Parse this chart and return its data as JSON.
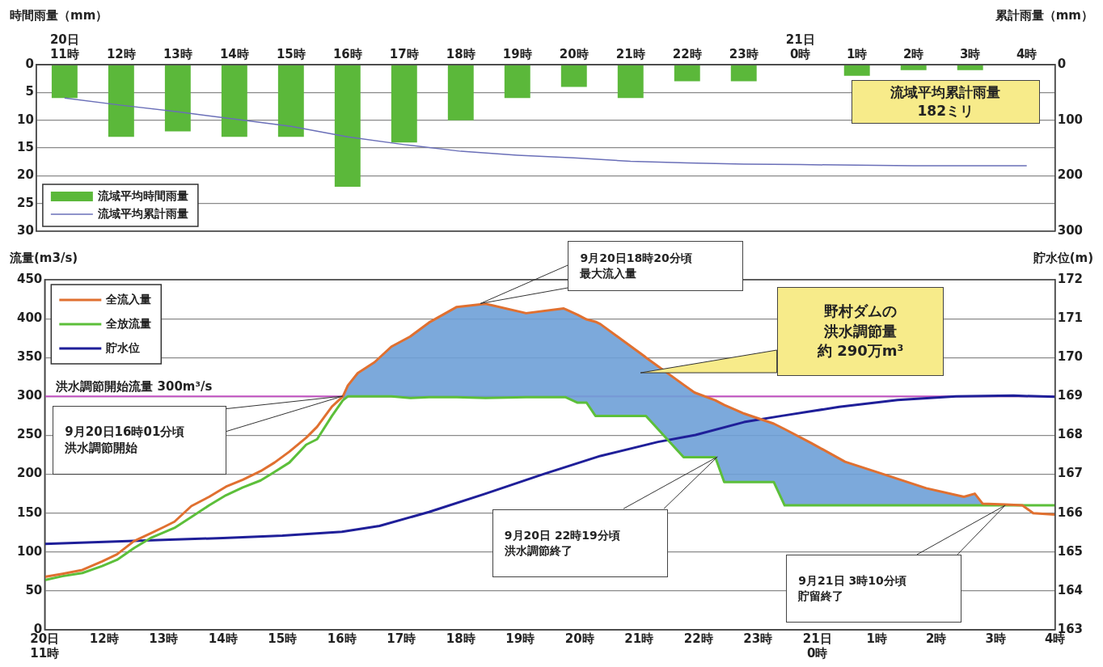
{
  "chart_data": [
    {
      "type": "bar",
      "ylabel": "時間雨量（mm）",
      "y2label": "累計雨量（mm）",
      "categories": [
        "20日\n11時",
        "12時",
        "13時",
        "14時",
        "15時",
        "16時",
        "17時",
        "18時",
        "19時",
        "20時",
        "21時",
        "22時",
        "23時",
        "21日\n0時",
        "1時",
        "2時",
        "3時",
        "4時"
      ],
      "series": [
        {
          "name": "流域平均時間雨量",
          "color": "#5bb83a",
          "values": [
            6,
            13,
            12,
            13,
            13,
            22,
            14,
            10,
            6,
            4,
            6,
            3,
            3,
            0,
            2,
            1,
            1,
            null
          ]
        },
        {
          "name": "流域平均累計雨量",
          "type": "line",
          "color": "#6a6fb8",
          "axis": "y2",
          "values": [
            60,
            73,
            85,
            98,
            111,
            130,
            144,
            156,
            163,
            168,
            174,
            177,
            179,
            180,
            181,
            182,
            182,
            182
          ]
        }
      ],
      "ylim": [
        30,
        0
      ],
      "yticks": [
        0,
        5,
        10,
        15,
        20,
        25,
        30
      ],
      "y2lim": [
        300,
        0
      ],
      "y2ticks": [
        0,
        100,
        200,
        300
      ],
      "grid": "y",
      "legend": "bottom left",
      "marker": "none",
      "annotations": [
        "流域平均累計雨量182ミリ"
      ]
    },
    {
      "type": "line",
      "ylabel": "流量(m3/s)",
      "y2label": "貯水位(m)",
      "x": [
        "--09-20T11:00",
        "--09-20T11:18",
        "--09-20T11:38",
        "--09-20T11:58",
        "--09-20T12:13",
        "--09-20T12:30",
        "--09-20T12:47",
        "--09-20T13:00",
        "--09-20T13:11",
        "--09-20T13:28",
        "--09-20T13:46",
        "--09-20T14:03",
        "--09-20T14:20",
        "--09-20T14:38",
        "--09-20T14:52",
        "--09-20T15:07",
        "--09-20T15:24",
        "--09-20T15:35",
        "--09-20T15:50",
        "--09-20T16:01",
        "--09-20T16:06",
        "--09-20T16:16",
        "--09-20T16:33",
        "--09-20T16:50",
        "--09-20T17:09",
        "--09-20T17:28",
        "--09-20T17:56",
        "--09-20T18:25",
        "--09-20T19:06",
        "--09-20T19:44",
        "--09-20T19:46",
        "--09-20T19:58",
        "--09-20T20:07",
        "--09-20T20:16",
        "--09-20T20:21",
        "--09-20T21:05",
        "--09-20T21:07",
        "--09-20T21:45",
        "--09-20T21:56",
        "--09-20T22:17",
        "--09-20T22:26",
        "--09-20T22:46",
        "--09-20T23:16",
        "--09-20T23:27",
        "--09-20T23:54",
        "--09-21T00:28",
        "--09-21T01:07",
        "--09-21T01:50",
        "--09-21T02:28",
        "--09-21T02:39",
        "--09-21T02:47",
        "--09-21T03:10",
        "--09-21T03:27",
        "--09-21T03:38",
        "--09-21T04:00"
      ],
      "series": [
        {
          "name": "全流入量",
          "color": "#e07030",
          "values": [
            68,
            72,
            77,
            88,
            97,
            114,
            124,
            132,
            139,
            159,
            171,
            184,
            193,
            204,
            215,
            229,
            247,
            261,
            287,
            300,
            314,
            330,
            344,
            364,
            377,
            395,
            415,
            419,
            407,
            413,
            412,
            405,
            399,
            396,
            393,
            352,
            350,
            315,
            305,
            295,
            289,
            278,
            265,
            258,
            240,
            216,
            200,
            182,
            171,
            175,
            162,
            161,
            160,
            150,
            148
          ],
          "lower": [
            null,
            null,
            null,
            null,
            null,
            null,
            null,
            null,
            null,
            null,
            null,
            null,
            null,
            null,
            null,
            null,
            null,
            null,
            null,
            295,
            300,
            300,
            300,
            300,
            298,
            299,
            299,
            298,
            299,
            299,
            299,
            292,
            292,
            275,
            275,
            275,
            275,
            222,
            222,
            222,
            190,
            190,
            190,
            160,
            160,
            160,
            160,
            160,
            160,
            160,
            160,
            160,
            null,
            null,
            null
          ],
          "upper": [
            null,
            null,
            null,
            null,
            null,
            null,
            null,
            null,
            null,
            null,
            null,
            null,
            null,
            null,
            null,
            null,
            null,
            null,
            null,
            300,
            314,
            330,
            344,
            364,
            377,
            395,
            415,
            419,
            407,
            413,
            412,
            405,
            399,
            396,
            393,
            352,
            350,
            315,
            305,
            295,
            289,
            278,
            265,
            258,
            240,
            216,
            200,
            182,
            171,
            175,
            162,
            161,
            null,
            null,
            null
          ]
        },
        {
          "name": "全放流量",
          "color": "#5cbf3a",
          "values": [
            64,
            69,
            73,
            82,
            90,
            105,
            118,
            125,
            131,
            145,
            160,
            173,
            183,
            192,
            203,
            215,
            238,
            245,
            275,
            295,
            300,
            300,
            300,
            300,
            298,
            299,
            299,
            298,
            299,
            299,
            299,
            292,
            292,
            275,
            275,
            275,
            275,
            222,
            222,
            222,
            190,
            190,
            190,
            160,
            160,
            160,
            160,
            160,
            160,
            160,
            160,
            160,
            160,
            160,
            160
          ]
        },
        {
          "name": "貯水位",
          "color": "#1f1f99",
          "axis": "y2",
          "x": [
            "--09-20T11:00",
            "--09-20T12:00",
            "--09-20T13:00",
            "--09-20T14:00",
            "--09-20T15:00",
            "--09-20T16:00",
            "--09-20T16:38",
            "--09-20T17:28",
            "--09-20T18:25",
            "--09-20T19:23",
            "--09-20T20:21",
            "--09-20T21:19",
            "--09-20T21:57",
            "--09-20T22:46",
            "--09-20T23:24",
            "--09-21T00:22",
            "--09-21T01:21",
            "--09-21T02:20",
            "--09-21T03:18",
            "--09-21T04:00"
          ],
          "values": [
            165.21,
            165.26,
            165.31,
            165.36,
            165.42,
            165.52,
            165.67,
            166.03,
            166.5,
            167.0,
            167.47,
            167.83,
            168.01,
            168.34,
            168.5,
            168.73,
            168.91,
            169.0,
            169.02,
            168.99
          ]
        }
      ],
      "xlim": [
        "--09-20T11:00",
        "--09-21T04:00"
      ],
      "xticks": [
        {
          "value": "--09-20T11:00",
          "label": "20日\n11時"
        },
        {
          "value": "--09-20T12:00",
          "label": "12時"
        },
        {
          "value": "--09-20T13:00",
          "label": "13時"
        },
        {
          "value": "--09-20T14:00",
          "label": "14時"
        },
        {
          "value": "--09-20T15:00",
          "label": "15時"
        },
        {
          "value": "--09-20T16:00",
          "label": "16時"
        },
        {
          "value": "--09-20T17:00",
          "label": "17時"
        },
        {
          "value": "--09-20T18:00",
          "label": "18時"
        },
        {
          "value": "--09-20T19:00",
          "label": "19時"
        },
        {
          "value": "--09-20T20:00",
          "label": "20時"
        },
        {
          "value": "--09-20T21:00",
          "label": "21時"
        },
        {
          "value": "--09-20T22:00",
          "label": "22時"
        },
        {
          "value": "--09-20T23:00",
          "label": "23時"
        },
        {
          "value": "--09-21T00:00",
          "label": "21日\n0時"
        },
        {
          "value": "--09-21T01:00",
          "label": "1時"
        },
        {
          "value": "--09-21T02:00",
          "label": "2時"
        },
        {
          "value": "--09-21T03:00",
          "label": "3時"
        },
        {
          "value": "--09-21T04:00",
          "label": "4時"
        }
      ],
      "ylim": [
        0,
        450
      ],
      "yticks": [
        0,
        50,
        100,
        150,
        200,
        250,
        300,
        350,
        400,
        450
      ],
      "y2lim": [
        163,
        172
      ],
      "y2ticks": [
        163,
        164,
        165,
        166,
        167,
        168,
        169,
        170,
        171,
        172
      ],
      "grid": "y",
      "legend": "top left",
      "marker": "none",
      "ref_lines": [
        {
          "axis": "y",
          "value": 300,
          "label": "洪水調節開始流量 300m³/s",
          "color": "#c050c0"
        }
      ],
      "annotations": [
        "9月20日18時20分頃最大流入量",
        "9月20日16時01分頃洪水調節開始",
        "9月20日 22時19分頃洪水調節終了",
        "9月21日 3時10分頃貯留終了",
        "野村ダムの洪水調節量約 290万m³"
      ]
    }
  ]
}
